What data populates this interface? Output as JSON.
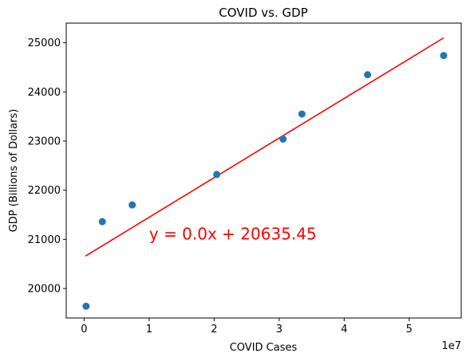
{
  "chart_data": {
    "type": "scatter",
    "title": "COVID vs. GDP",
    "xlabel": "COVID Cases",
    "ylabel": "GDP (Billions of Dollars)",
    "x_offset_label": "1e7",
    "x_multiplier": 10000000,
    "xlim": [
      -2750000,
      58000000
    ],
    "ylim": [
      19400,
      25400
    ],
    "xticks": [
      0,
      10000000,
      20000000,
      30000000,
      40000000,
      50000000
    ],
    "xtick_labels": [
      "0",
      "1",
      "2",
      "3",
      "4",
      "5"
    ],
    "yticks": [
      20000,
      21000,
      22000,
      23000,
      24000,
      25000
    ],
    "ytick_labels": [
      "20000",
      "21000",
      "22000",
      "23000",
      "24000",
      "25000"
    ],
    "grid": false,
    "series": [
      {
        "type": "scatter",
        "color": "#1f77b4",
        "points": [
          {
            "x": 300000,
            "y": 19640
          },
          {
            "x": 2800000,
            "y": 21360
          },
          {
            "x": 7400000,
            "y": 21700
          },
          {
            "x": 20400000,
            "y": 22320
          },
          {
            "x": 30600000,
            "y": 23040
          },
          {
            "x": 33500000,
            "y": 23550
          },
          {
            "x": 43600000,
            "y": 24350
          },
          {
            "x": 55300000,
            "y": 24740
          }
        ]
      },
      {
        "type": "line",
        "color": "#ff0000",
        "points": [
          {
            "x": 200000,
            "y": 20660
          },
          {
            "x": 55300000,
            "y": 25100
          }
        ]
      }
    ],
    "annotation": {
      "text": "y = 0.0x + 20635.45",
      "x": 10000000,
      "y": 21000,
      "color": "#ff0000"
    }
  }
}
